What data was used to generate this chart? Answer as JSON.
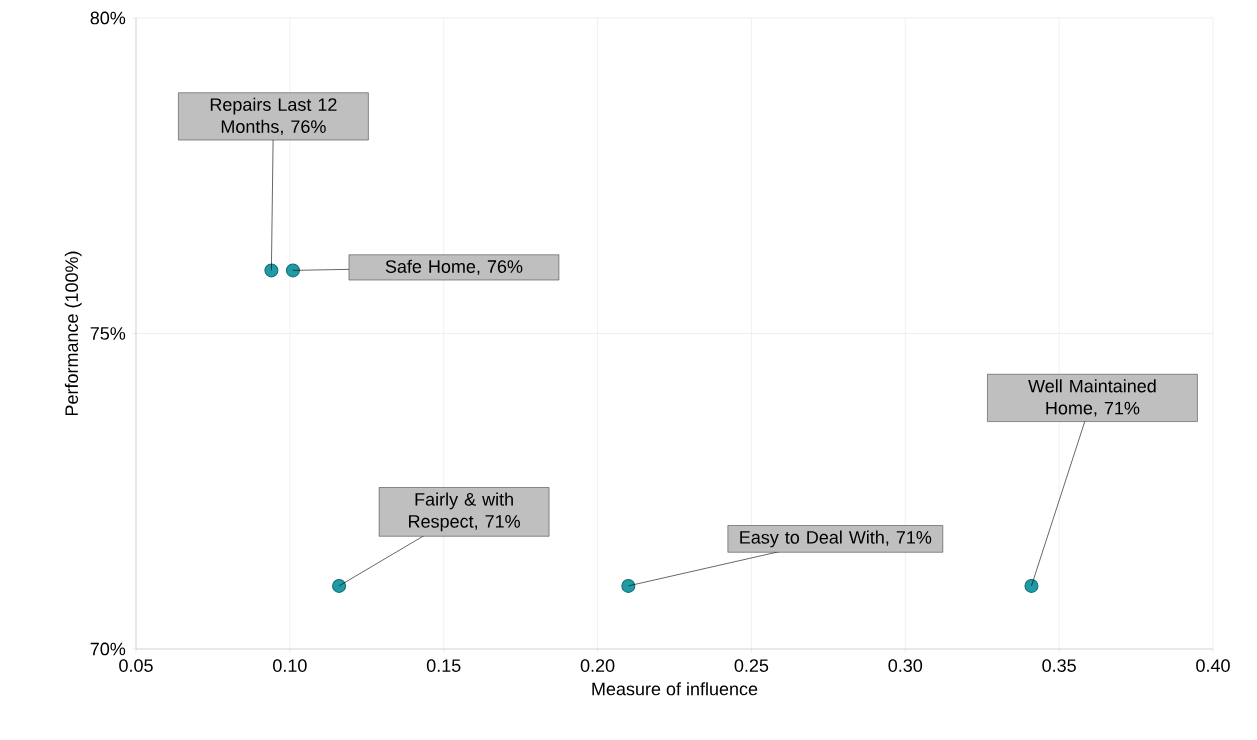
{
  "chart_data": {
    "type": "scatter",
    "xlabel": "Measure of influence",
    "ylabel": "Performance (100%)",
    "x": [
      0.094,
      0.101,
      0.116,
      0.21,
      0.341
    ],
    "values": [
      76,
      76,
      71,
      71,
      71
    ],
    "color": "#1f9ba6",
    "marker": "circle",
    "grid": true,
    "xlim": [
      0.05,
      0.4
    ],
    "xticks": [
      {
        "value": 0.05,
        "label": "0.05"
      },
      {
        "value": 0.1,
        "label": "0.10"
      },
      {
        "value": 0.15,
        "label": "0.15"
      },
      {
        "value": 0.2,
        "label": "0.20"
      },
      {
        "value": 0.25,
        "label": "0.25"
      },
      {
        "value": 0.3,
        "label": "0.30"
      },
      {
        "value": 0.35,
        "label": "0.35"
      },
      {
        "value": 0.4,
        "label": "0.40"
      }
    ],
    "ylim": [
      70,
      80
    ],
    "yticks": [
      {
        "value": 70,
        "label": "70%"
      },
      {
        "value": 75,
        "label": "75%"
      },
      {
        "value": 80,
        "label": "80%"
      }
    ],
    "annotations": [
      {
        "text": "Repairs Last 12 Months, 76%",
        "x": 0.094,
        "y": 76
      },
      {
        "text": "Safe Home, 76%",
        "x": 0.101,
        "y": 76
      },
      {
        "text": "Fairly & with Respect, 71%",
        "x": 0.116,
        "y": 71
      },
      {
        "text": "Easy to Deal With, 71%",
        "x": 0.21,
        "y": 71
      },
      {
        "text": "Well Maintained Home, 71%",
        "x": 0.341,
        "y": 71
      }
    ]
  }
}
